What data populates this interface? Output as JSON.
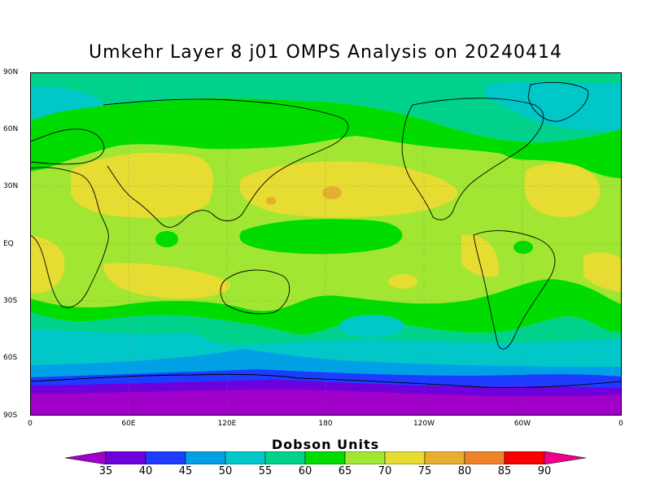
{
  "title": "Umkehr Layer 8 j01 OMPS Analysis on 20240414",
  "y_axis_labels": [
    "90N",
    "60N",
    "30N",
    "EQ",
    "30S",
    "60S",
    "90S"
  ],
  "x_axis_labels": [
    "0",
    "60E",
    "120E",
    "180",
    "120W",
    "60W",
    "0"
  ],
  "colorbar": {
    "title": "Dobson Units",
    "labels": [
      "35",
      "40",
      "45",
      "50",
      "55",
      "60",
      "65",
      "70",
      "75",
      "80",
      "85",
      "90"
    ],
    "colors": [
      "#a000c8",
      "#6e00dc",
      "#1e3cff",
      "#00a0e6",
      "#00c8c8",
      "#00d28c",
      "#00dc00",
      "#a0e632",
      "#e6dc32",
      "#e6af2d",
      "#f08228",
      "#fa0000",
      "#f0008c"
    ]
  },
  "map": {
    "projection": "cylindrical equidistant",
    "grid": "dotted",
    "field": "ozone (Dobson Units)"
  }
}
